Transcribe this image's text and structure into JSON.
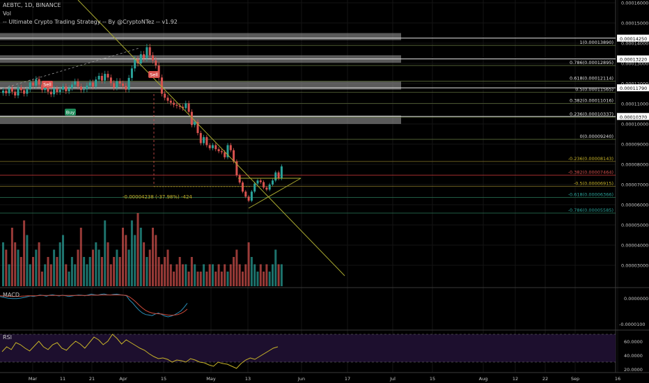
{
  "header": {
    "symbol_line": "AEBTC, 1D, BINANCE",
    "volume_label": "Vol",
    "strategy_line": "-- Ultimate Crypto Trading Strategy -- By @CryptoNTez -- v1.92",
    "macd_label": "MACD",
    "rsi_label": "RSI"
  },
  "colors": {
    "background": "#000000",
    "up_candle": "#2aa39a",
    "down_candle": "#d9534f",
    "zone_fill": "#8a8a8a",
    "fib_line": "#5a6b3a",
    "trend_line": "#a8a830",
    "macd_line": "#2a8fb8",
    "signal_line": "#d04a3a",
    "rsi_line": "#c8b428",
    "rsi_band": "#1d0f2e"
  },
  "chart_data": [
    {
      "type": "candlestick",
      "title": "AEBTC, 1D, BINANCE",
      "x_tick_labels": [
        "Mar",
        "11",
        "21",
        "Apr",
        "15",
        "May",
        "13",
        "Jun",
        "17",
        "Jul",
        "15",
        "Aug",
        "12",
        "22",
        "Sep",
        "16"
      ],
      "y_tick_labels": [
        "0.00016000",
        "0.00015000",
        "0.00014000",
        "0.00013000",
        "0.00012000",
        "0.00011000",
        "0.00010000",
        "0.00009000",
        "0.00008000",
        "0.00007000",
        "0.00006000",
        "0.00005000",
        "0.00004000",
        "0.00003000"
      ],
      "ylim": [
        2.5e-05,
        0.000165
      ],
      "price_labels": [
        "0.00014250",
        "0.00013220",
        "0.00011790",
        "0.00010370"
      ],
      "fib_levels": [
        {
          "label": "1(0.00013890)",
          "value": 0.0001389
        },
        {
          "label": "0.786(0.00012895)",
          "value": 0.00012895
        },
        {
          "label": "0.618(0.00012114)",
          "value": 0.00012114
        },
        {
          "label": "0.5(0.00011565)",
          "value": 0.00011565
        },
        {
          "label": "0.382(0.00011016)",
          "value": 0.00011016
        },
        {
          "label": "0.236(0.00010337)",
          "value": 0.00010337
        },
        {
          "label": "0(0.00009240)",
          "value": 9.24e-05
        },
        {
          "label": "-0.236(0.00008143)",
          "value": 8.143e-05
        },
        {
          "label": "-0.382(0.00007464)",
          "value": 7.464e-05
        },
        {
          "label": "-0.5(0.00006915)",
          "value": 6.915e-05
        },
        {
          "label": "-0.618(0.00006366)",
          "value": 6.366e-05
        },
        {
          "label": "-0.786(0.00005585)",
          "value": 5.585e-05
        }
      ],
      "signals": [
        "Sell",
        "Buy",
        "Sell"
      ],
      "measure_label": "-0.00004238 (-37.98%) -424",
      "close_series": [
        0.0001165,
        0.0001152,
        0.0001178,
        0.000116,
        0.0001141,
        0.000118,
        0.0001167,
        0.000115,
        0.0001172,
        0.0001205,
        0.000119,
        0.0001222,
        0.0001195,
        0.0001168,
        0.0001182,
        0.000116,
        0.0001147,
        0.0001175,
        0.0001158,
        0.000117,
        0.0001185,
        0.0001162,
        0.0001178,
        0.0001195,
        0.000121,
        0.0001185,
        0.0001168,
        0.0001172,
        0.000119,
        0.0001205,
        0.0001185,
        0.000122,
        0.0001238,
        0.0001215,
        0.0001248,
        0.000123,
        0.0001202,
        0.000118,
        0.0001212,
        0.00012,
        0.0001188,
        0.000117,
        0.0001228,
        0.0001275,
        0.000132,
        0.00013,
        0.0001345,
        0.0001325,
        0.000138,
        0.000134,
        0.0001315,
        0.000129,
        0.000123,
        0.000115,
        0.000113,
        0.0001115,
        0.0001105,
        0.0001095,
        0.000109,
        0.0001085,
        0.0001078,
        0.0001102,
        0.000106,
        9.95e-05,
        0.000101,
        9.55e-05,
        9.05e-05,
        9.35e-05,
        8.95e-05,
        8.8e-05,
        8.95e-05,
        8.75e-05,
        8.65e-05,
        8.6e-05,
        8.35e-05,
        8.95e-05,
        8.7e-05,
        8.15e-05,
        7.45e-05,
        7.1e-05,
        6.65e-05,
        6.4e-05,
        6.2e-05,
        6.65e-05,
        7.05e-05,
        7.2e-05,
        7.12e-05,
        6.85e-05,
        6.75e-05,
        7e-05,
        7.2e-05,
        7.6e-05,
        7.3e-05,
        7.9e-05
      ]
    },
    {
      "type": "bar",
      "title": "Vol",
      "values": [
        6,
        5,
        3,
        8,
        6,
        5,
        4,
        9,
        7,
        3,
        4,
        5,
        6,
        2,
        3,
        4,
        3,
        5,
        4,
        6,
        7,
        3,
        2,
        4,
        3,
        5,
        8,
        4,
        3,
        4,
        5,
        6,
        5,
        4,
        9,
        6,
        3,
        4,
        5,
        4,
        8,
        7,
        5,
        9,
        7,
        10,
        8,
        6,
        4,
        5,
        8,
        7,
        4,
        3,
        4,
        5,
        3,
        2,
        3,
        4,
        3,
        3,
        2,
        4,
        3,
        2,
        2,
        3,
        2,
        3,
        3,
        2,
        3,
        2,
        3,
        2,
        3,
        4,
        5,
        3,
        2,
        3,
        6,
        4,
        3,
        2,
        3,
        2,
        3,
        2,
        3,
        5,
        3,
        3
      ]
    },
    {
      "type": "line",
      "title": "MACD",
      "y_tick_labels": [
        "0.0000000",
        "-0.0000100"
      ],
      "series": [
        {
          "values": [
            0.5,
            0.8,
            0.6,
            0.9,
            1.2,
            1.0,
            0.7,
            1.1,
            1.3,
            1.0,
            0.8,
            1.1,
            0.9,
            0.6,
            0.8,
            1.0,
            1.2,
            1.1,
            0.9,
            1.2,
            1.5,
            1.3,
            1.1,
            1.4,
            1.6,
            1.3,
            1.2,
            1.4,
            1.5,
            1.3,
            1.1,
            0.9,
            -0.8,
            -2.0,
            -3.5,
            -4.8,
            -5.8,
            -6.4,
            -6.6,
            -6.8,
            -6.2,
            -5.8,
            -6.4,
            -7.0,
            -7.3,
            -7.0,
            -6.5,
            -5.8,
            -5.0,
            -3.6,
            -2.0
          ]
        },
        {
          "values": [
            0.9,
            0.9,
            0.9,
            0.9,
            1.0,
            1.0,
            1.0,
            1.0,
            1.0,
            1.0,
            1.0,
            1.0,
            1.0,
            1.0,
            1.0,
            1.0,
            1.0,
            1.0,
            1.0,
            1.0,
            1.1,
            1.1,
            1.1,
            1.2,
            1.2,
            1.2,
            1.2,
            1.2,
            1.2,
            1.2,
            1.1,
            1.0,
            0.4,
            -0.5,
            -1.6,
            -2.8,
            -3.9,
            -4.8,
            -5.4,
            -5.8,
            -6.0,
            -6.1,
            -6.2,
            -6.4,
            -6.6,
            -6.7,
            -6.6,
            -6.4,
            -6.0,
            -5.3,
            -4.3
          ]
        }
      ]
    },
    {
      "type": "line",
      "title": "RSI",
      "y_tick_labels": [
        "60.0000",
        "40.0000",
        "20.0000"
      ],
      "values": [
        45,
        52,
        48,
        58,
        55,
        50,
        46,
        53,
        60,
        52,
        48,
        55,
        58,
        50,
        47,
        54,
        60,
        56,
        50,
        58,
        66,
        62,
        55,
        60,
        70,
        64,
        56,
        62,
        58,
        54,
        50,
        47,
        42,
        38,
        35,
        36,
        34,
        30,
        33,
        32,
        30,
        35,
        33,
        30,
        29,
        26,
        24,
        30,
        28,
        27,
        24,
        21,
        28,
        33,
        36,
        34,
        38,
        42,
        46,
        50,
        52
      ]
    }
  ]
}
